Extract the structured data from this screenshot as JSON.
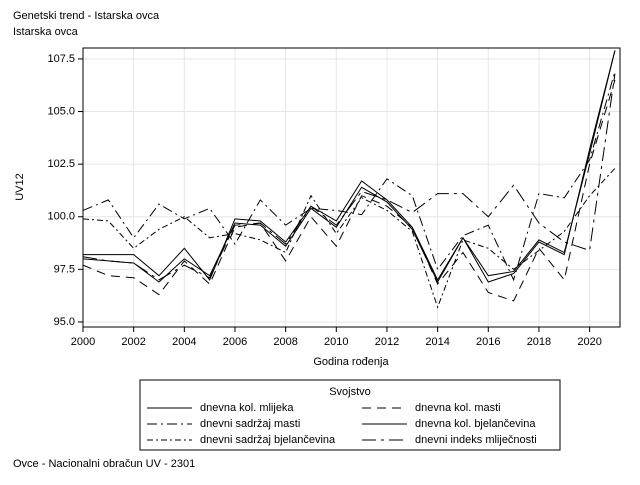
{
  "chart_data": {
    "type": "line",
    "title": "Genetski trend - Istarska ovca",
    "subtitle": "Istarska ovca",
    "x_label": "Godina rođenja",
    "y_label": "UV12",
    "legend_title": "Svojstvo",
    "footnote": "Ovce - Nacionalni obračun UV - 2301",
    "legend_position": "bottom",
    "grid": true,
    "x": [
      2000,
      2001,
      2002,
      2003,
      2004,
      2005,
      2006,
      2007,
      2008,
      2009,
      2010,
      2011,
      2012,
      2013,
      2014,
      2015,
      2016,
      2017,
      2018,
      2019,
      2020,
      2021
    ],
    "xlim": [
      2000,
      2021.2
    ],
    "xticks": [
      2000,
      2002,
      2004,
      2006,
      2008,
      2010,
      2012,
      2014,
      2016,
      2018,
      2020
    ],
    "ylim": [
      94.76,
      108.02
    ],
    "yticks": [
      {
        "value": 95,
        "label": "95.0"
      },
      97.5,
      {
        "value": 100,
        "label": "100.0"
      },
      102.5,
      {
        "value": 105,
        "label": "105.0"
      },
      107.5
    ],
    "series": [
      {
        "name": "dnevna kol. mlijeka",
        "color": "#000000",
        "dash": "none",
        "values": [
          98.2,
          98.2,
          98.2,
          97.2,
          98.5,
          97.0,
          99.9,
          99.8,
          98.8,
          100.5,
          99.8,
          101.7,
          100.8,
          99.5,
          97.0,
          99.0,
          97.2,
          97.4,
          98.9,
          98.3,
          103.0,
          107.9
        ]
      },
      {
        "name": "dnevna kol. masti",
        "color": "#000000",
        "dash": "9 6",
        "values": [
          97.7,
          97.2,
          97.1,
          96.3,
          97.9,
          96.8,
          99.5,
          99.7,
          97.9,
          100.0,
          98.6,
          101.0,
          100.5,
          99.5,
          96.8,
          98.3,
          96.4,
          96.0,
          98.5,
          97.0,
          102.5,
          106.5
        ]
      },
      {
        "name": "dnevni sadržaj masti",
        "color": "#000000",
        "dash": "10 4 2 4",
        "values": [
          100.3,
          100.8,
          99.0,
          100.6,
          99.9,
          100.4,
          98.7,
          100.8,
          99.6,
          100.4,
          100.3,
          100.1,
          101.8,
          101.0,
          97.5,
          99.1,
          99.6,
          97.0,
          101.1,
          100.9,
          102.7,
          106.9
        ]
      },
      {
        "name": "dnevna kol. bjelančevina",
        "color": "#000000",
        "dash": "none",
        "values": [
          98.0,
          97.9,
          97.8,
          96.9,
          98.0,
          97.2,
          99.7,
          99.6,
          98.6,
          100.4,
          99.5,
          101.4,
          100.7,
          99.4,
          96.9,
          99.0,
          96.9,
          97.3,
          98.8,
          98.2,
          103.2,
          107.9
        ]
      },
      {
        "name": "dnevni sadržaj bjelančevina",
        "color": "#000000",
        "dash": "6 3 2 3",
        "values": [
          99.9,
          99.8,
          98.5,
          99.4,
          100.0,
          99.0,
          99.2,
          98.9,
          98.3,
          101.0,
          99.2,
          100.9,
          100.3,
          99.3,
          95.7,
          98.9,
          98.5,
          97.5,
          98.4,
          99.3,
          101.0,
          102.3
        ]
      },
      {
        "name": "dnevni indeks mliječnosti",
        "color": "#000000",
        "dash": "14 5 3 5",
        "values": [
          98.1,
          97.9,
          97.8,
          97.0,
          97.7,
          97.1,
          99.6,
          99.7,
          98.7,
          100.5,
          99.6,
          101.2,
          100.8,
          100.2,
          101.1,
          101.1,
          100.0,
          101.5,
          99.7,
          98.8,
          98.4,
          106.8
        ]
      }
    ]
  }
}
